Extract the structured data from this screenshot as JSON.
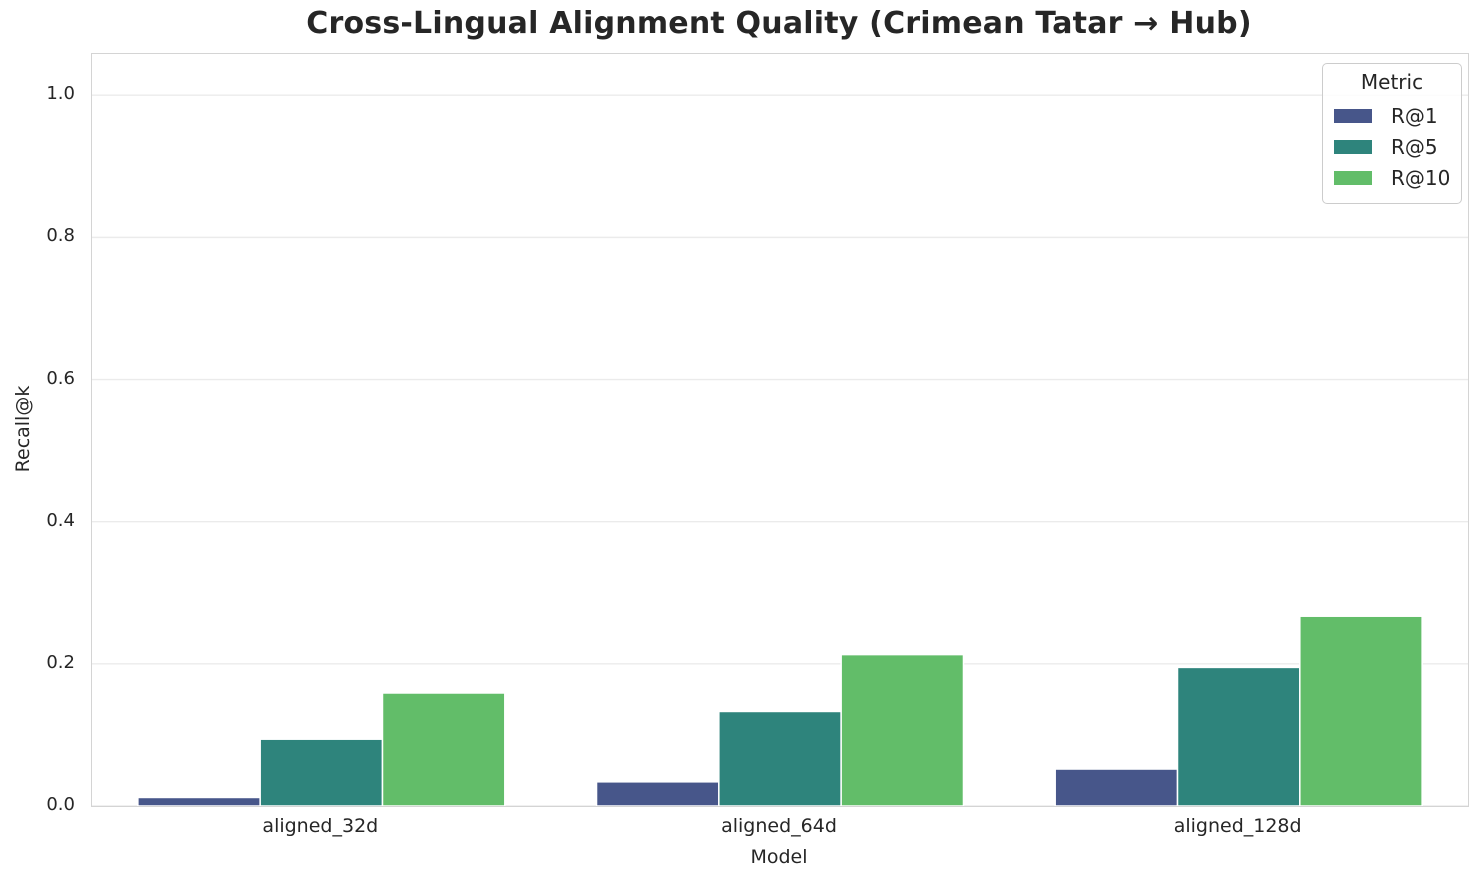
{
  "title": "Cross-Lingual Alignment Quality (Crimean Tatar → Hub)",
  "chart_data": {
    "type": "bar",
    "grouped": true,
    "title": "Cross-Lingual Alignment Quality (Crimean Tatar → Hub)",
    "xlabel": "Model",
    "ylabel": "Recall@k",
    "categories": [
      "aligned_32d",
      "aligned_64d",
      "aligned_128d"
    ],
    "series": [
      {
        "name": "R@1",
        "color": "#47568a",
        "values": [
          0.012,
          0.034,
          0.052
        ]
      },
      {
        "name": "R@5",
        "color": "#2e847c",
        "values": [
          0.094,
          0.133,
          0.195
        ]
      },
      {
        "name": "R@10",
        "color": "#62bd69",
        "values": [
          0.159,
          0.213,
          0.267
        ]
      }
    ],
    "yticks": [
      0.0,
      0.2,
      0.4,
      0.6,
      0.8,
      1.0
    ],
    "ylim": [
      0,
      1.058
    ],
    "grid": "horizontal",
    "legend": {
      "title": "Metric",
      "position": "upper right"
    }
  },
  "colors": {
    "background": "#ffffff",
    "gridline": "#ebebeb",
    "spine": "#d4d4d4",
    "text": "#262626",
    "bar_edge": "#ffffff"
  }
}
